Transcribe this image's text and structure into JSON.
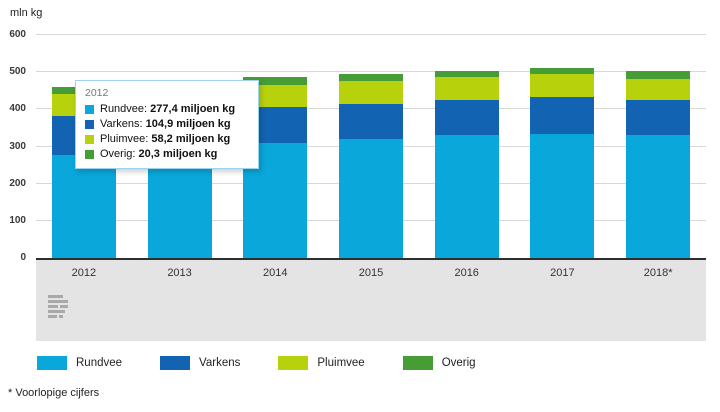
{
  "page": {
    "y_axis_title": "mln kg",
    "footnote": "* Voorlopige cijfers"
  },
  "tooltip": {
    "title": "2012",
    "rows": [
      {
        "label": "Rundvee:",
        "value": "277,4 miljoen kg",
        "color": "#09a7da"
      },
      {
        "label": "Varkens:",
        "value": "104,9 miljoen kg",
        "color": "#1263b2"
      },
      {
        "label": "Pluimvee:",
        "value": "58,2 miljoen kg",
        "color": "#b8d10d"
      },
      {
        "label": "Overig:",
        "value": "20,3 miljoen kg",
        "color": "#469c35"
      }
    ]
  },
  "legend": {
    "items": [
      {
        "label": "Rundvee",
        "color": "#09a7da"
      },
      {
        "label": "Varkens",
        "color": "#1263b2"
      },
      {
        "label": "Pluimvee",
        "color": "#b8d10d"
      },
      {
        "label": "Overig",
        "color": "#469c35"
      }
    ]
  },
  "chart_data": {
    "type": "bar",
    "stacked": true,
    "title": "",
    "xlabel": "",
    "ylabel": "mln kg",
    "ylim": [
      0,
      600
    ],
    "y_ticks": [
      0,
      100,
      200,
      300,
      400,
      500,
      600
    ],
    "grid": true,
    "legend_position": "bottom",
    "categories": [
      "2012",
      "2013",
      "2014",
      "2015",
      "2016",
      "2017",
      "2018*"
    ],
    "series": [
      {
        "name": "Rundvee",
        "color": "#09a7da",
        "values": [
          277.4,
          290,
          310,
          320,
          330,
          335,
          330
        ]
      },
      {
        "name": "Varkens",
        "color": "#1263b2",
        "values": [
          104.9,
          100,
          97,
          95,
          95,
          98,
          95
        ]
      },
      {
        "name": "Pluimvee",
        "color": "#b8d10d",
        "values": [
          58.2,
          60,
          58,
          62,
          62,
          62,
          57
        ]
      },
      {
        "name": "Overig",
        "color": "#469c35",
        "values": [
          20.3,
          20,
          22,
          18,
          15,
          17,
          21
        ]
      }
    ],
    "annotations": [
      "2018 values are provisional (Voorlopige cijfers)"
    ]
  }
}
